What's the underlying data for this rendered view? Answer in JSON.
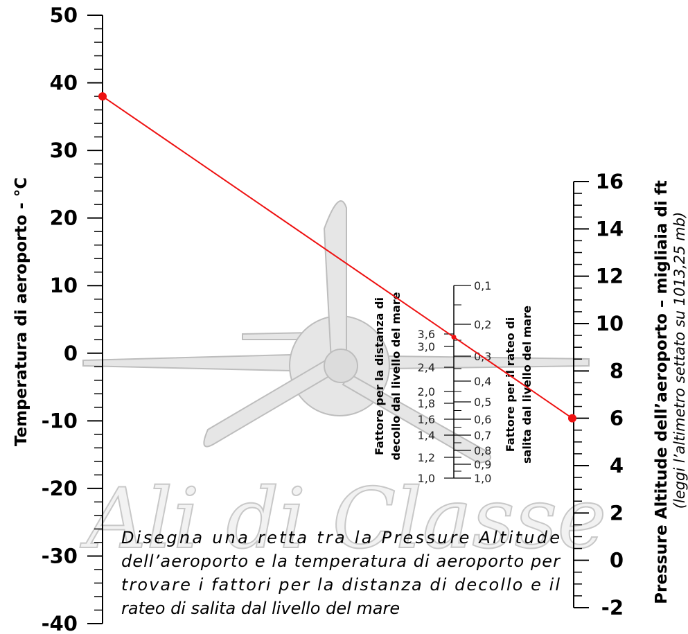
{
  "temperature_scale": {
    "label": "Temperatura di aeroporto - °C",
    "range": [
      -40,
      50
    ],
    "ticks": [
      50,
      40,
      30,
      20,
      10,
      0,
      -10,
      -20,
      -30,
      -40
    ]
  },
  "altitude_scale": {
    "label": "Pressure Altitude dell’aeroporto – migliaia di ft",
    "note": "(leggi l’altimetro settato su 1013,25 mb)",
    "range": [
      -2,
      16
    ],
    "ticks": [
      16,
      14,
      12,
      10,
      8,
      6,
      4,
      2,
      0,
      -2
    ]
  },
  "takeoff_factor_scale": {
    "label_lines": [
      "Fattore  per  la  distanza  di",
      "decollo dal livello del mare"
    ],
    "ticks": [
      "3,6",
      "3,0",
      "2,4",
      "2,0",
      "1,8",
      "1,6",
      "1,4",
      "1,2",
      "1,0"
    ]
  },
  "climb_factor_scale": {
    "label_lines": [
      "Fattore  per  il  rateo  di",
      "salita dal livello del mare"
    ],
    "ticks": [
      "0,1",
      "0,2",
      "0,3",
      "0,4",
      "0,5",
      "0,6",
      "0,7",
      "0,8",
      "0,9",
      "1,0"
    ]
  },
  "example_line": {
    "temperature": 38,
    "pressure_altitude": 6,
    "color": "#ee1111"
  },
  "instructions": [
    "Disegna  una  retta  tra  la  Pressure  Altitude",
    "dell’aeroporto e la temperatura di aeroporto per",
    "trovare i fattori per la distanza di decollo e il",
    "rateo di salita dal livello del mare"
  ],
  "watermark": "Ali di Classe"
}
